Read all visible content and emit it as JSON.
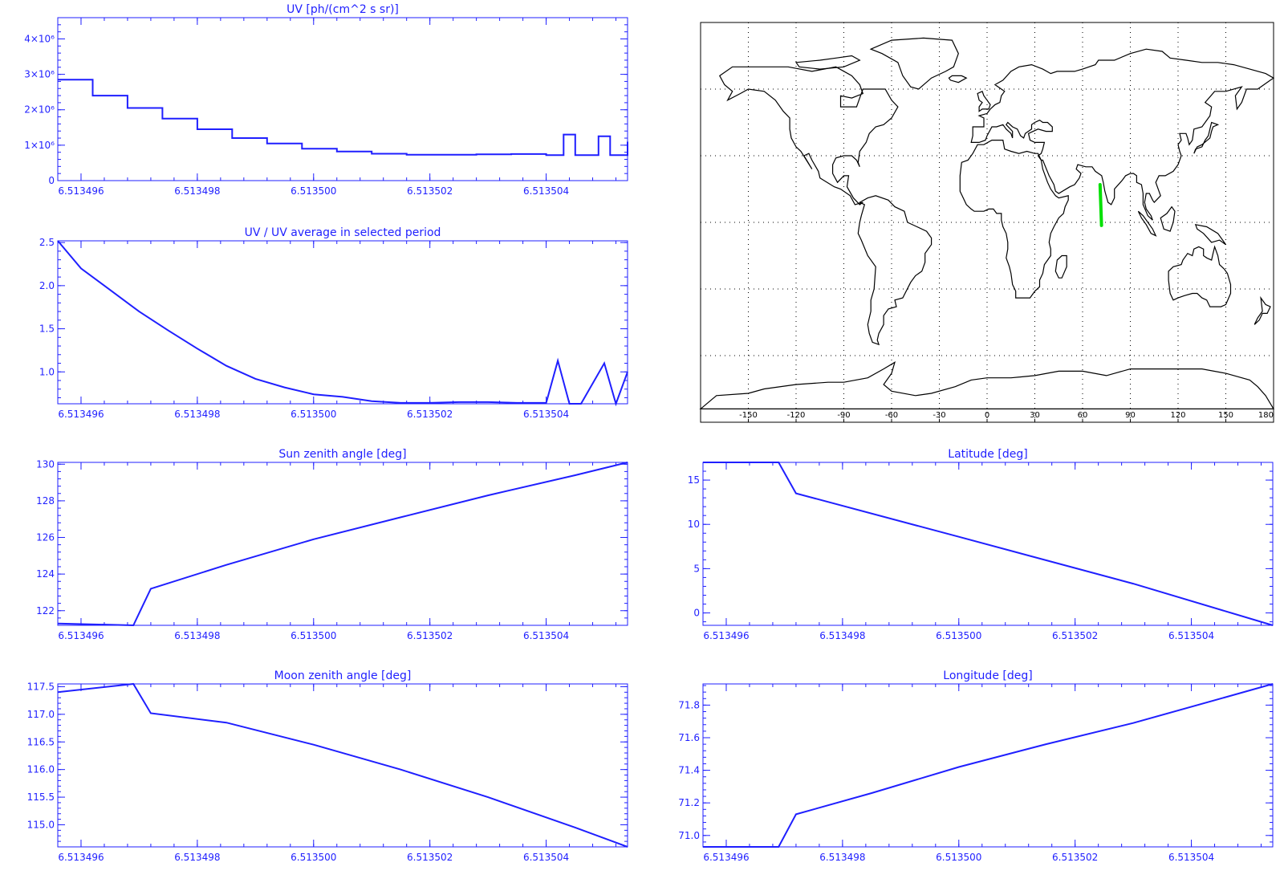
{
  "style": {
    "plot_color": "#1f1fff",
    "map_color": "#000000",
    "track_color": "#00e000"
  },
  "chart_data": [
    {
      "id": "uv",
      "type": "line",
      "step": true,
      "title": "UV [ph/(cm^2 s sr)]",
      "xlabel": "",
      "ylabel": "",
      "xlim": [
        6.5134956,
        6.5135054
      ],
      "ylim": [
        0,
        4600000
      ],
      "xticks": [
        6.513496,
        6.513498,
        6.5135,
        6.513502,
        6.513504
      ],
      "xtick_labels": [
        "6.513496",
        "6.513498",
        "6.513500",
        "6.513502",
        "6.513504"
      ],
      "yticks": [
        0,
        1000000,
        2000000,
        3000000,
        4000000
      ],
      "ytick_labels": [
        "0",
        "1×10⁶",
        "2×10⁶",
        "3×10⁶",
        "4×10⁶"
      ],
      "series": [
        {
          "x": [
            6.5134956,
            6.5134962,
            6.5134968,
            6.5134974,
            6.513498,
            6.5134986,
            6.5134992,
            6.5134998,
            6.5135004,
            6.513501,
            6.5135016,
            6.5135022,
            6.5135028,
            6.5135034,
            6.513504,
            6.5135043,
            6.5135045,
            6.5135049,
            6.5135051,
            6.5135054
          ],
          "y": [
            2850000,
            2400000,
            2050000,
            1750000,
            1450000,
            1200000,
            1050000,
            900000,
            820000,
            760000,
            730000,
            730000,
            740000,
            750000,
            720000,
            1300000,
            720000,
            1250000,
            720000,
            1100000
          ]
        }
      ]
    },
    {
      "id": "uv_ratio",
      "type": "line",
      "title": "UV / UV average in selected period",
      "xlabel": "",
      "ylabel": "",
      "xlim": [
        6.5134956,
        6.5135054
      ],
      "ylim": [
        0.63,
        2.52
      ],
      "xticks": [
        6.513496,
        6.513498,
        6.5135,
        6.513502,
        6.513504
      ],
      "xtick_labels": [
        "6.513496",
        "6.513498",
        "6.513500",
        "6.513502",
        "6.513504"
      ],
      "yticks": [
        1.0,
        1.5,
        2.0,
        2.5
      ],
      "ytick_labels": [
        "1.0",
        "1.5",
        "2.0",
        "2.5"
      ],
      "series": [
        {
          "x": [
            6.5134956,
            6.513496,
            6.5134965,
            6.513497,
            6.5134975,
            6.513498,
            6.5134985,
            6.513499,
            6.5134995,
            6.5135,
            6.5135005,
            6.513501,
            6.5135015,
            6.513502,
            6.5135025,
            6.513503,
            6.5135035,
            6.513504,
            6.5135042,
            6.5135044,
            6.5135046,
            6.513505,
            6.5135052,
            6.5135054
          ],
          "y": [
            2.52,
            2.2,
            1.95,
            1.7,
            1.48,
            1.27,
            1.07,
            0.92,
            0.82,
            0.74,
            0.71,
            0.66,
            0.64,
            0.64,
            0.65,
            0.65,
            0.64,
            0.64,
            1.13,
            0.63,
            0.63,
            1.1,
            0.63,
            1.0
          ]
        }
      ]
    },
    {
      "id": "sun_zenith",
      "type": "line",
      "title": "Sun zenith angle [deg]",
      "xlabel": "",
      "ylabel": "",
      "xlim": [
        6.5134956,
        6.5135054
      ],
      "ylim": [
        121.2,
        130.1
      ],
      "xticks": [
        6.513496,
        6.513498,
        6.5135,
        6.513502,
        6.513504
      ],
      "xtick_labels": [
        "6.513496",
        "6.513498",
        "6.513500",
        "6.513502",
        "6.513504"
      ],
      "yticks": [
        122,
        124,
        126,
        128,
        130
      ],
      "ytick_labels": [
        "122",
        "124",
        "126",
        "128",
        "130"
      ],
      "series": [
        {
          "x": [
            6.5134956,
            6.5134969,
            6.5134972,
            6.5134985,
            6.5135,
            6.5135015,
            6.513503,
            6.5135045,
            6.5135054
          ],
          "y": [
            121.3,
            121.2,
            123.2,
            124.5,
            125.9,
            127.1,
            128.3,
            129.4,
            130.1
          ]
        }
      ]
    },
    {
      "id": "latitude",
      "type": "line",
      "title": "Latitude [deg]",
      "xlabel": "",
      "ylabel": "",
      "xlim": [
        6.5134956,
        6.5135054
      ],
      "ylim": [
        -1.4,
        17
      ],
      "xticks": [
        6.513496,
        6.513498,
        6.5135,
        6.513502,
        6.513504
      ],
      "xtick_labels": [
        "6.513496",
        "6.513498",
        "6.513500",
        "6.513502",
        "6.513504"
      ],
      "yticks": [
        0,
        5,
        10,
        15
      ],
      "ytick_labels": [
        "0",
        "5",
        "10",
        "15"
      ],
      "series": [
        {
          "x": [
            6.5134956,
            6.5134969,
            6.5134972,
            6.5135,
            6.513503,
            6.5135054
          ],
          "y": [
            17,
            17,
            13.5,
            8.6,
            3.3,
            -1.4
          ]
        }
      ]
    },
    {
      "id": "moon_zenith",
      "type": "line",
      "title": "Moon zenith angle [deg]",
      "xlabel": "",
      "ylabel": "",
      "xlim": [
        6.5134956,
        6.5135054
      ],
      "ylim": [
        114.6,
        117.55
      ],
      "xticks": [
        6.513496,
        6.513498,
        6.5135,
        6.513502,
        6.513504
      ],
      "xtick_labels": [
        "6.513496",
        "6.513498",
        "6.513500",
        "6.513502",
        "6.513504"
      ],
      "yticks": [
        115.0,
        115.5,
        116.0,
        116.5,
        117.0,
        117.5
      ],
      "ytick_labels": [
        "115.0",
        "115.5",
        "116.0",
        "116.5",
        "117.0",
        "117.5"
      ],
      "series": [
        {
          "x": [
            6.5134956,
            6.5134969,
            6.5134972,
            6.5134985,
            6.5135,
            6.5135015,
            6.513503,
            6.5135045,
            6.5135054
          ],
          "y": [
            117.4,
            117.55,
            117.02,
            116.85,
            116.45,
            116.0,
            115.5,
            114.95,
            114.6
          ]
        }
      ]
    },
    {
      "id": "longitude",
      "type": "line",
      "title": "Longitude [deg]",
      "xlabel": "",
      "ylabel": "",
      "xlim": [
        6.5134956,
        6.5135054
      ],
      "ylim": [
        70.93,
        71.93
      ],
      "xticks": [
        6.513496,
        6.513498,
        6.5135,
        6.513502,
        6.513504
      ],
      "xtick_labels": [
        "6.513496",
        "6.513498",
        "6.513500",
        "6.513502",
        "6.513504"
      ],
      "yticks": [
        71.0,
        71.2,
        71.4,
        71.6,
        71.8
      ],
      "ytick_labels": [
        "71.0",
        "71.2",
        "71.4",
        "71.6",
        "71.8"
      ],
      "series": [
        {
          "x": [
            6.5134956,
            6.5134969,
            6.5134972,
            6.5134985,
            6.5135,
            6.5135015,
            6.513503,
            6.5135045,
            6.5135054
          ],
          "y": [
            70.93,
            70.93,
            71.13,
            71.26,
            71.42,
            71.56,
            71.69,
            71.84,
            71.93
          ]
        }
      ]
    }
  ],
  "map": {
    "type": "map",
    "title": "",
    "projection": "equirectangular",
    "lon_range": [
      -180,
      180
    ],
    "lat_range": [
      -90,
      90
    ],
    "grid": true,
    "xtick_labels": [
      "-150",
      "-120",
      "-90",
      "-60",
      "-30",
      "0",
      "30",
      "60",
      "90",
      "120",
      "150",
      "180"
    ],
    "track": {
      "lon": [
        71.0,
        71.9
      ],
      "lat": [
        17,
        -1.4
      ]
    }
  }
}
